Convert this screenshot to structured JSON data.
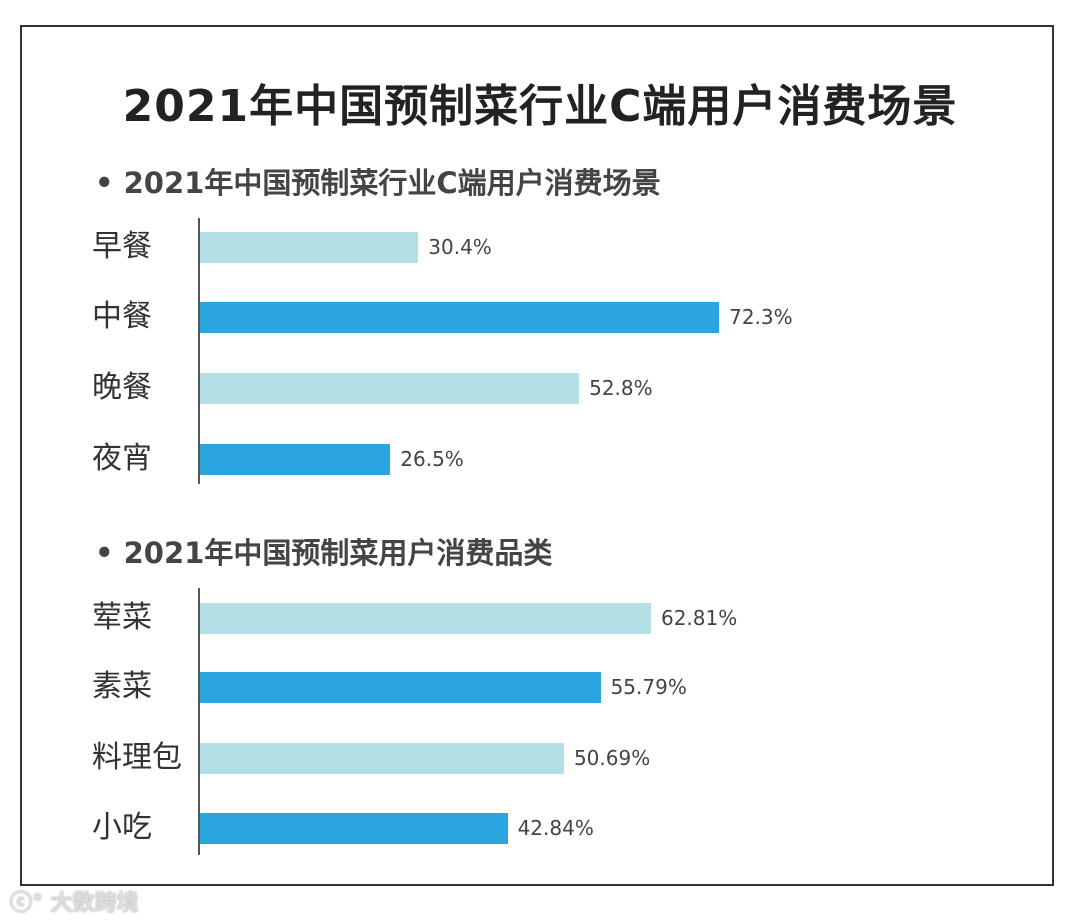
{
  "title": "2021年中国预制菜行业C端用户消费场景",
  "watermark": "大数跨境",
  "colors": {
    "light": "#b5dfe6",
    "dark": "#2ba5e0"
  },
  "chart_data": [
    {
      "type": "bar",
      "orientation": "horizontal",
      "title": "• 2021年中国预制菜行业C端用户消费场景",
      "categories": [
        "早餐",
        "中餐",
        "晚餐",
        "夜宵"
      ],
      "values": [
        30.4,
        72.3,
        52.8,
        26.5
      ],
      "labels": [
        "30.4%",
        "72.3%",
        "52.8%",
        "26.5%"
      ],
      "unit": "%"
    },
    {
      "type": "bar",
      "orientation": "horizontal",
      "title": "• 2021年中国预制菜用户消费品类",
      "categories": [
        "荤菜",
        "素菜",
        "料理包",
        "小吃"
      ],
      "values": [
        62.81,
        55.79,
        50.69,
        42.84
      ],
      "labels": [
        "62.81%",
        "55.79%",
        "50.69%",
        "42.84%"
      ],
      "unit": "%"
    }
  ]
}
